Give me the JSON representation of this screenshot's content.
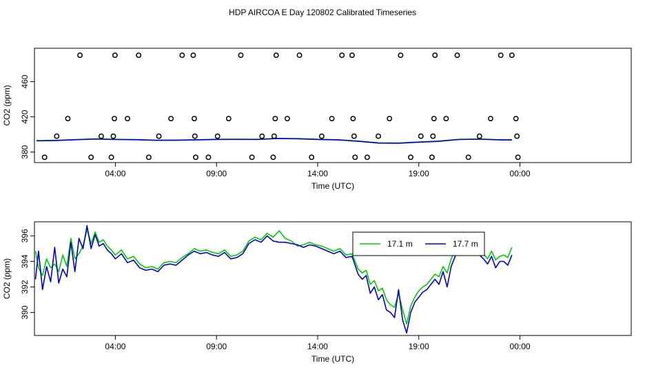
{
  "title": "HDP AIRCOA E  Day 120802  Calibrated Timeseries",
  "colors": {
    "green": "#00cc00",
    "blue": "#0000cc",
    "axis": "#000000",
    "background": "#ffffff"
  },
  "chart_data": [
    {
      "type": "scatter",
      "title": "",
      "xlabel": "Time (UTC)",
      "ylabel": "CO2 (ppm)",
      "xlim": [
        -4,
        25.5
      ],
      "ylim": [
        368,
        498
      ],
      "xticks": [
        {
          "value": 0,
          "label": "04:00"
        },
        {
          "value": 5,
          "label": "09:00"
        },
        {
          "value": 10,
          "label": "14:00"
        },
        {
          "value": 15,
          "label": "19:00"
        },
        {
          "value": 20,
          "label": "00:00"
        }
      ],
      "yticks": [
        380,
        420,
        460
      ],
      "legend": "none",
      "points": [
        {
          "x": -3.5,
          "y": 374
        },
        {
          "x": -2.9,
          "y": 398
        },
        {
          "x": -2.35,
          "y": 418
        },
        {
          "x": -1.75,
          "y": 490
        },
        {
          "x": -1.2,
          "y": 374
        },
        {
          "x": -0.7,
          "y": 398
        },
        {
          "x": -0.2,
          "y": 374
        },
        {
          "x": -0.1,
          "y": 398
        },
        {
          "x": -0.05,
          "y": 418
        },
        {
          "x": -0.02,
          "y": 490
        },
        {
          "x": 0.6,
          "y": 418
        },
        {
          "x": 1.15,
          "y": 490
        },
        {
          "x": 1.65,
          "y": 374
        },
        {
          "x": 2.15,
          "y": 398
        },
        {
          "x": 2.75,
          "y": 418
        },
        {
          "x": 3.3,
          "y": 490
        },
        {
          "x": 3.85,
          "y": 490
        },
        {
          "x": 3.9,
          "y": 418
        },
        {
          "x": 3.93,
          "y": 398
        },
        {
          "x": 3.97,
          "y": 374
        },
        {
          "x": 4.6,
          "y": 374
        },
        {
          "x": 5.05,
          "y": 398
        },
        {
          "x": 5.6,
          "y": 418
        },
        {
          "x": 6.2,
          "y": 490
        },
        {
          "x": 6.75,
          "y": 374
        },
        {
          "x": 7.25,
          "y": 398
        },
        {
          "x": 7.8,
          "y": 374
        },
        {
          "x": 7.85,
          "y": 398
        },
        {
          "x": 7.9,
          "y": 418
        },
        {
          "x": 7.95,
          "y": 490
        },
        {
          "x": 8.5,
          "y": 418
        },
        {
          "x": 9.1,
          "y": 490
        },
        {
          "x": 9.7,
          "y": 374
        },
        {
          "x": 10.2,
          "y": 398
        },
        {
          "x": 10.7,
          "y": 418
        },
        {
          "x": 11.2,
          "y": 490
        },
        {
          "x": 11.7,
          "y": 490
        },
        {
          "x": 11.75,
          "y": 418
        },
        {
          "x": 11.8,
          "y": 398
        },
        {
          "x": 11.85,
          "y": 374
        },
        {
          "x": 12.45,
          "y": 374
        },
        {
          "x": 13.0,
          "y": 398
        },
        {
          "x": 13.55,
          "y": 418
        },
        {
          "x": 14.1,
          "y": 490
        },
        {
          "x": 14.6,
          "y": 374
        },
        {
          "x": 15.1,
          "y": 398
        },
        {
          "x": 15.65,
          "y": 374
        },
        {
          "x": 15.7,
          "y": 398
        },
        {
          "x": 15.75,
          "y": 418
        },
        {
          "x": 15.8,
          "y": 490
        },
        {
          "x": 16.35,
          "y": 418
        },
        {
          "x": 16.9,
          "y": 490
        },
        {
          "x": 17.45,
          "y": 374
        },
        {
          "x": 18.0,
          "y": 398
        },
        {
          "x": 18.55,
          "y": 418
        },
        {
          "x": 19.05,
          "y": 490
        },
        {
          "x": 19.6,
          "y": 490
        },
        {
          "x": 19.8,
          "y": 418
        },
        {
          "x": 19.85,
          "y": 398
        },
        {
          "x": 19.9,
          "y": 374
        }
      ],
      "series": [
        {
          "color": "#00cc00",
          "x": [
            -3.9,
            -3,
            -2,
            -1,
            0,
            1,
            2,
            3,
            4,
            5,
            6,
            7,
            8,
            9,
            10,
            11,
            12,
            13,
            14,
            15,
            16,
            17,
            18,
            19,
            19.6
          ],
          "y": [
            393,
            393.3,
            394,
            395,
            394.5,
            394.2,
            393.5,
            393.5,
            394,
            394.5,
            394.6,
            394.5,
            395.5,
            395.3,
            394.5,
            394,
            392.5,
            390.5,
            390.3,
            391.5,
            392.5,
            394.5,
            394.8,
            394,
            394
          ]
        },
        {
          "color": "#0000cc",
          "x": [
            -3.9,
            -3,
            -2,
            -1,
            0,
            1,
            2,
            3,
            4,
            5,
            6,
            7,
            8,
            9,
            10,
            11,
            12,
            13,
            14,
            15,
            16,
            17,
            18,
            19,
            19.6
          ],
          "y": [
            392.7,
            393,
            394,
            394.8,
            394.2,
            394,
            393.3,
            393.4,
            393.8,
            394.3,
            394.4,
            394.3,
            395.3,
            395.1,
            394.3,
            393.8,
            392.2,
            390.2,
            390,
            391.2,
            392.2,
            394.2,
            394.6,
            393.8,
            393.7
          ]
        }
      ]
    },
    {
      "type": "line",
      "title": "",
      "xlabel": "Time (UTC)",
      "ylabel": "CO2 (ppm)",
      "xlim": [
        -4,
        25.5
      ],
      "ylim": [
        388.2,
        397.1
      ],
      "xticks": [
        {
          "value": 0,
          "label": "04:00"
        },
        {
          "value": 5,
          "label": "09:00"
        },
        {
          "value": 10,
          "label": "14:00"
        },
        {
          "value": 15,
          "label": "19:00"
        },
        {
          "value": 20,
          "label": "00:00"
        }
      ],
      "yticks": [
        390,
        392,
        394,
        396
      ],
      "legend": "top-center",
      "series": [
        {
          "name": "17.1 m",
          "color": "#00cc00",
          "x": [
            -3.95,
            -3.8,
            -3.6,
            -3.4,
            -3.2,
            -3.0,
            -2.8,
            -2.6,
            -2.4,
            -2.2,
            -2.0,
            -1.8,
            -1.6,
            -1.4,
            -1.2,
            -1.0,
            -0.8,
            -0.6,
            -0.4,
            -0.2,
            0.0,
            0.3,
            0.6,
            0.9,
            1.2,
            1.5,
            1.8,
            2.1,
            2.4,
            2.7,
            3.0,
            3.3,
            3.6,
            3.9,
            4.2,
            4.5,
            4.8,
            5.1,
            5.4,
            5.7,
            6.0,
            6.3,
            6.6,
            6.9,
            7.2,
            7.5,
            7.8,
            8.1,
            8.4,
            8.7,
            9.0,
            9.3,
            9.6,
            9.9,
            10.2,
            10.5,
            10.8,
            11.1,
            11.4,
            11.7,
            12.0,
            12.2,
            12.4,
            12.6,
            12.8,
            13.0,
            13.2,
            13.4,
            13.6,
            13.8,
            14.0,
            14.2,
            14.4,
            14.6,
            14.8,
            15.0,
            15.2,
            15.4,
            15.6,
            15.8,
            16.0,
            16.2,
            16.4,
            16.6,
            16.8,
            17.0,
            17.2,
            17.4,
            17.6,
            17.8,
            18.0,
            18.2,
            18.4,
            18.6,
            18.8,
            19.0,
            19.2,
            19.4,
            19.6
          ],
          "y": [
            394.8,
            393.5,
            392.9,
            394.2,
            393.5,
            393.8,
            393.2,
            394.5,
            393.6,
            395.8,
            394.2,
            394.6,
            395.2,
            396.5,
            395.4,
            396.3,
            395.5,
            395.7,
            395.2,
            394.9,
            394.5,
            394.9,
            394.2,
            394.4,
            393.8,
            393.5,
            393.6,
            393.4,
            393.9,
            394.0,
            393.9,
            394.3,
            394.6,
            395.0,
            394.8,
            394.9,
            394.7,
            394.6,
            394.9,
            394.4,
            394.5,
            394.8,
            395.6,
            395.9,
            395.7,
            396.2,
            395.9,
            396.4,
            395.8,
            395.6,
            395.2,
            395.3,
            395.5,
            395.3,
            395.2,
            395.0,
            394.8,
            395.0,
            394.5,
            394.6,
            393.4,
            393.1,
            393.3,
            392.2,
            392.5,
            391.7,
            391.9,
            391.0,
            390.6,
            390.4,
            391.5,
            390.2,
            389.1,
            390.5,
            391.2,
            391.7,
            392.0,
            392.2,
            392.6,
            393.0,
            392.8,
            393.6,
            393.1,
            394.2,
            394.8,
            395.7,
            396.3,
            395.2,
            395.5,
            395.8,
            394.9,
            394.6,
            394.2,
            394.8,
            394.1,
            394.4,
            394.5,
            394.3,
            395.1
          ]
        },
        {
          "name": "17.7 m",
          "color": "#0000cc",
          "x": [
            -3.95,
            -3.8,
            -3.6,
            -3.4,
            -3.2,
            -3.0,
            -2.8,
            -2.6,
            -2.4,
            -2.2,
            -2.0,
            -1.8,
            -1.6,
            -1.4,
            -1.2,
            -1.0,
            -0.8,
            -0.6,
            -0.4,
            -0.2,
            0.0,
            0.3,
            0.6,
            0.9,
            1.2,
            1.5,
            1.8,
            2.1,
            2.4,
            2.7,
            3.0,
            3.3,
            3.6,
            3.9,
            4.2,
            4.5,
            4.8,
            5.1,
            5.4,
            5.7,
            6.0,
            6.3,
            6.6,
            6.9,
            7.2,
            7.5,
            7.8,
            8.1,
            8.4,
            8.7,
            9.0,
            9.3,
            9.6,
            9.9,
            10.2,
            10.5,
            10.8,
            11.1,
            11.4,
            11.7,
            12.0,
            12.2,
            12.4,
            12.6,
            12.8,
            13.0,
            13.2,
            13.4,
            13.6,
            13.8,
            14.0,
            14.2,
            14.4,
            14.6,
            14.8,
            15.0,
            15.2,
            15.4,
            15.6,
            15.8,
            16.0,
            16.2,
            16.4,
            16.6,
            16.8,
            17.0,
            17.2,
            17.4,
            17.6,
            17.8,
            18.0,
            18.2,
            18.4,
            18.6,
            18.8,
            19.0,
            19.2,
            19.4,
            19.6
          ],
          "y": [
            392.6,
            394.8,
            391.8,
            393.6,
            392.4,
            395.1,
            392.3,
            393.4,
            392.8,
            395.5,
            393.2,
            395.8,
            395.0,
            396.8,
            395.0,
            396.1,
            395.2,
            395.4,
            394.9,
            394.6,
            394.2,
            394.6,
            393.9,
            394.1,
            393.5,
            393.3,
            393.4,
            393.2,
            393.7,
            393.8,
            393.7,
            394.1,
            394.5,
            394.8,
            394.6,
            394.7,
            394.5,
            394.4,
            394.7,
            394.2,
            394.3,
            394.6,
            395.4,
            395.7,
            395.5,
            396.0,
            395.6,
            395.5,
            395.5,
            395.4,
            395.3,
            395.1,
            395.3,
            395.2,
            395.0,
            394.8,
            394.6,
            394.8,
            394.3,
            394.4,
            393.0,
            392.6,
            392.9,
            391.5,
            392.0,
            391.0,
            391.4,
            390.2,
            390.0,
            389.6,
            391.8,
            389.4,
            388.4,
            390.0,
            390.8,
            391.2,
            391.6,
            391.8,
            392.2,
            392.6,
            392.2,
            393.2,
            392.0,
            393.6,
            394.4,
            395.3,
            395.9,
            394.6,
            395.2,
            395.1,
            394.5,
            394.2,
            393.8,
            394.4,
            393.5,
            394.0,
            394.0,
            393.7,
            394.5
          ]
        }
      ]
    }
  ]
}
